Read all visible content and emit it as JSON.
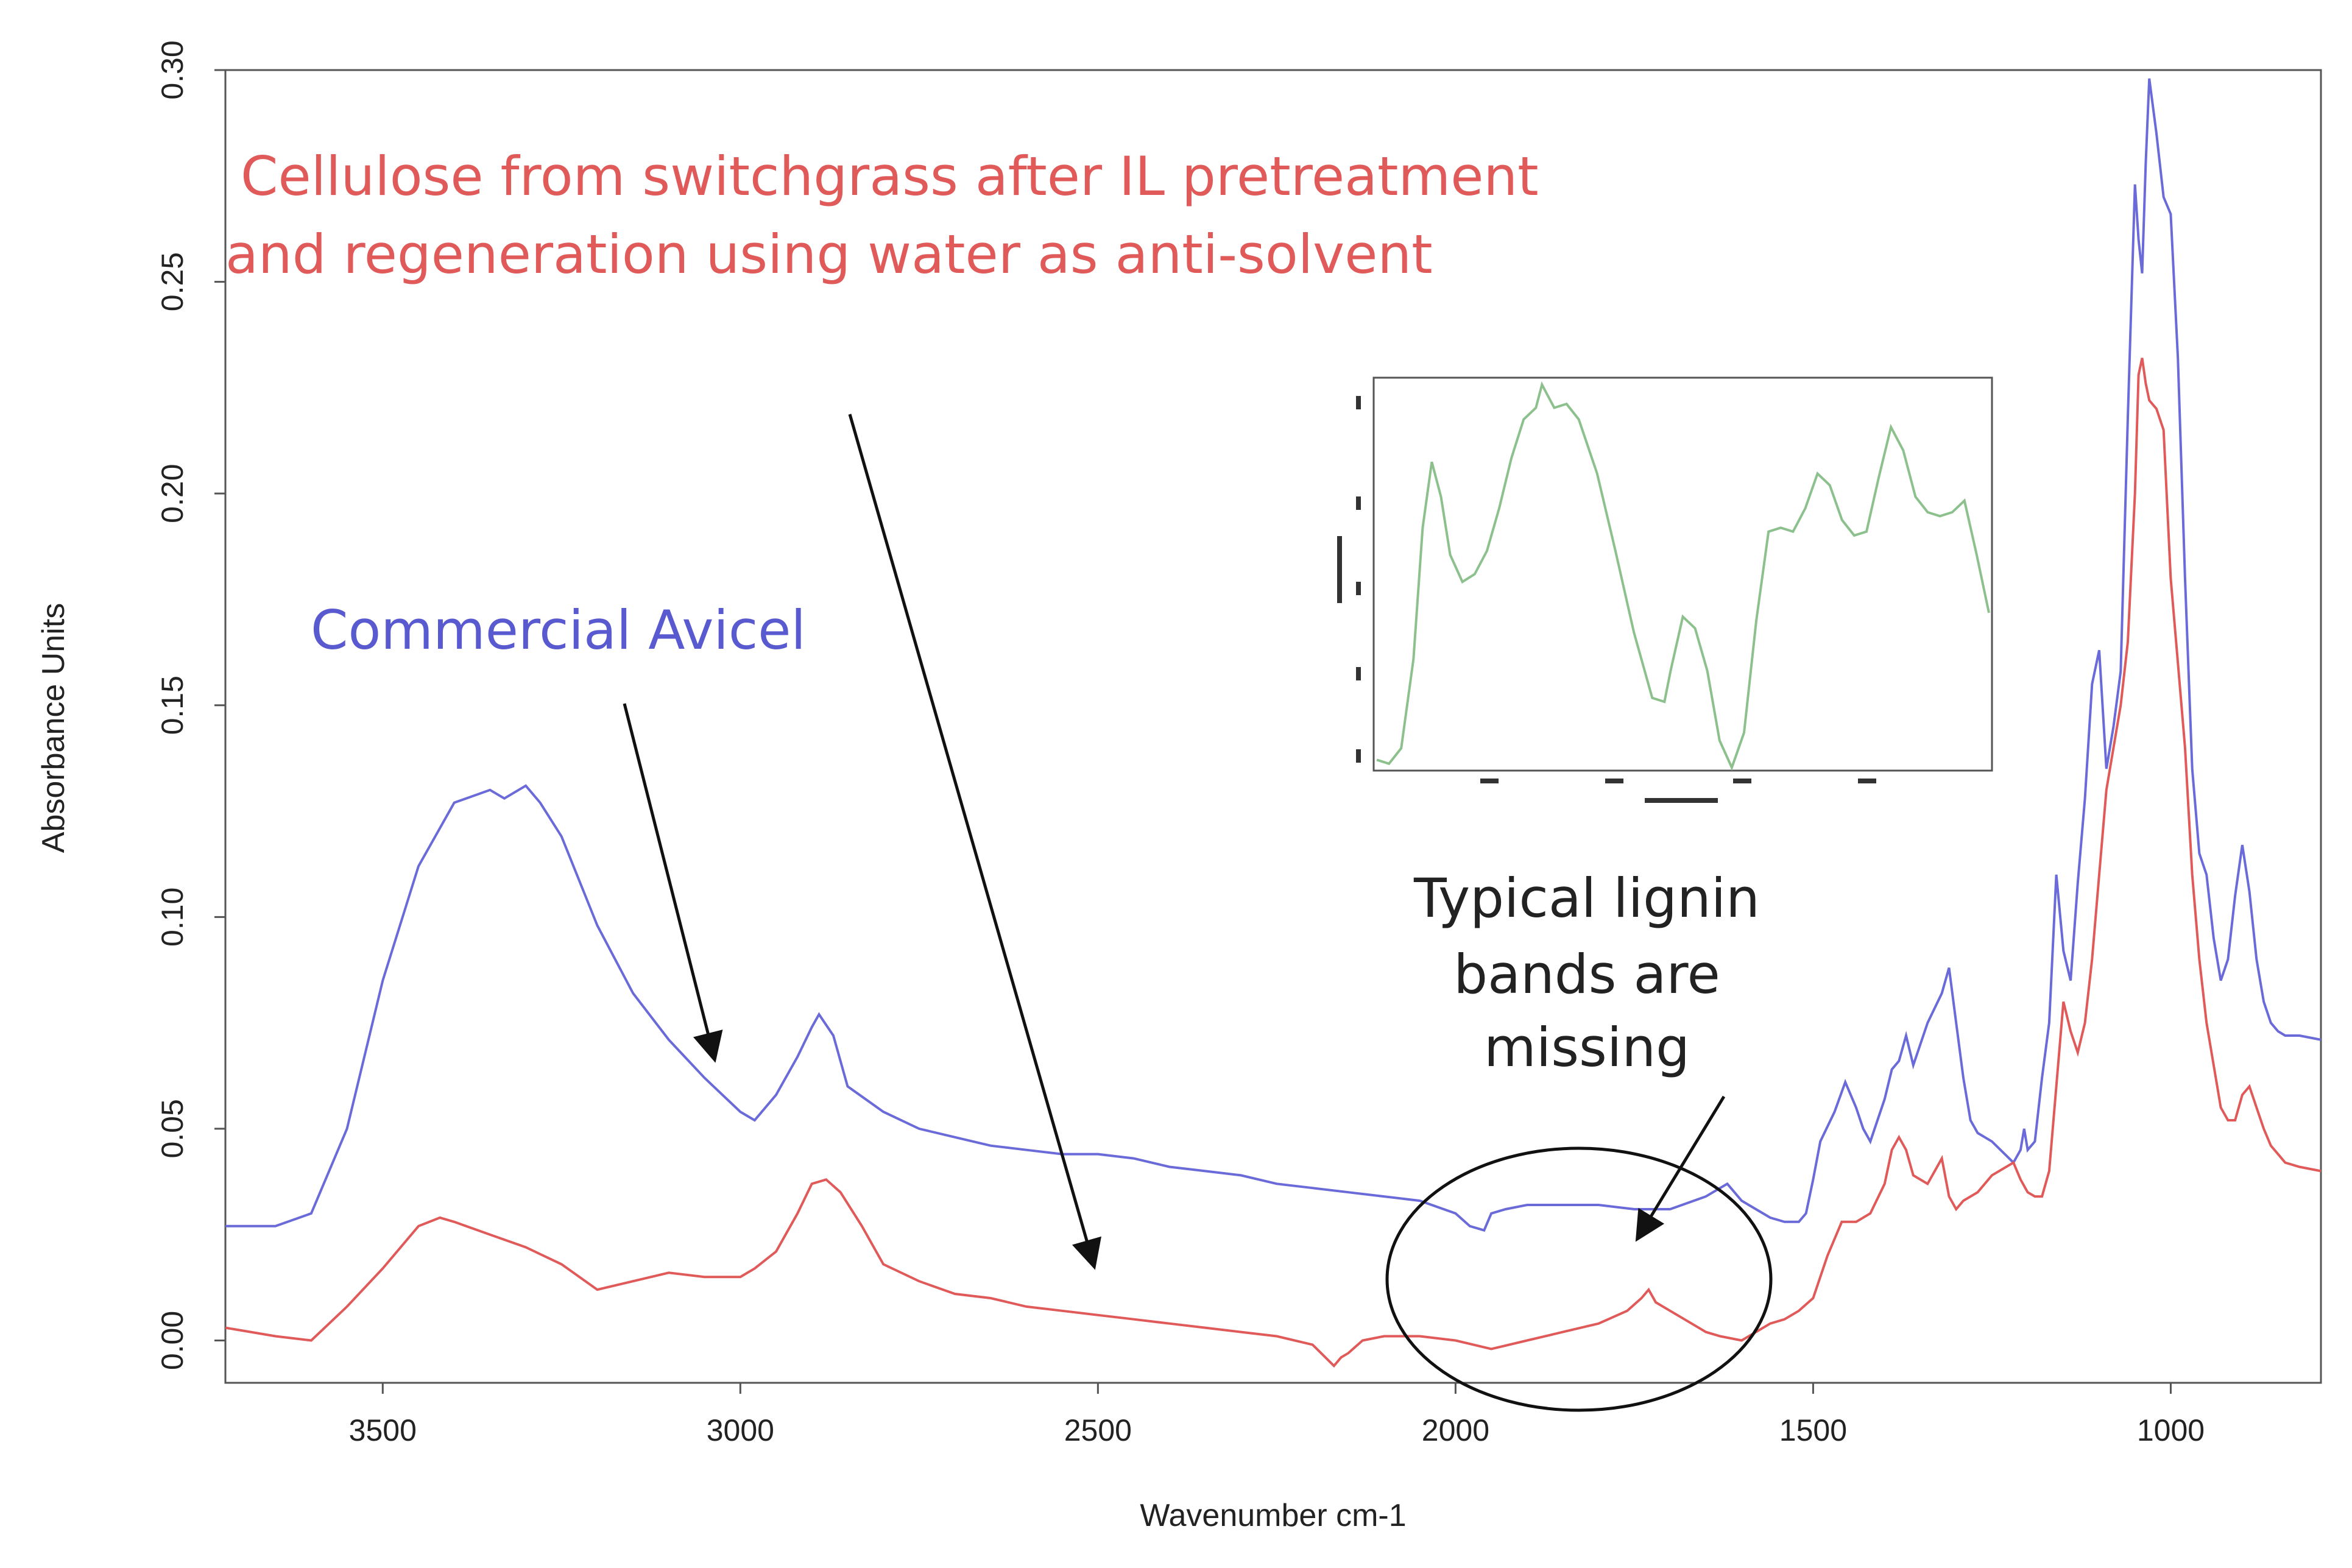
{
  "chart_data": {
    "type": "line",
    "ylabel": "Absorbance Units",
    "xlabel": "Wavenumber cm-1",
    "xlim": [
      3720,
      790
    ],
    "ylim": [
      -0.01,
      0.3
    ],
    "x_reversed": true,
    "xticks": [
      3500,
      3000,
      2500,
      2000,
      1500,
      1000
    ],
    "yticks": [
      0.0,
      0.05,
      0.1,
      0.15,
      0.2,
      0.25,
      0.3
    ],
    "xtick_labels": [
      "3500",
      "3000",
      "2500",
      "2000",
      "1500",
      "1000"
    ],
    "ytick_labels": [
      "0.00",
      "0.05",
      "0.10",
      "0.15",
      "0.20",
      "0.25",
      "0.30"
    ],
    "series": [
      {
        "key": "avicel",
        "color": "#6a6ad8",
        "x": [
          3720,
          3650,
          3600,
          3550,
          3500,
          3450,
          3400,
          3350,
          3330,
          3300,
          3280,
          3250,
          3200,
          3150,
          3100,
          3050,
          3000,
          2980,
          2950,
          2920,
          2900,
          2890,
          2870,
          2850,
          2800,
          2750,
          2700,
          2650,
          2600,
          2550,
          2500,
          2450,
          2400,
          2350,
          2300,
          2250,
          2200,
          2150,
          2100,
          2050,
          2000,
          1980,
          1960,
          1950,
          1930,
          1900,
          1850,
          1800,
          1750,
          1700,
          1650,
          1620,
          1600,
          1580,
          1560,
          1540,
          1520,
          1510,
          1500,
          1490,
          1470,
          1455,
          1440,
          1430,
          1420,
          1400,
          1390,
          1380,
          1370,
          1360,
          1340,
          1320,
          1310,
          1300,
          1290,
          1280,
          1270,
          1250,
          1220,
          1210,
          1205,
          1200,
          1190,
          1180,
          1170,
          1160,
          1150,
          1140,
          1130,
          1120,
          1110,
          1100,
          1090,
          1080,
          1070,
          1060,
          1050,
          1045,
          1040,
          1035,
          1030,
          1020,
          1010,
          1000,
          990,
          980,
          970,
          960,
          950,
          940,
          930,
          920,
          910,
          900,
          890,
          880,
          870,
          860,
          850,
          840,
          820,
          790
        ],
        "y": [
          0.027,
          0.027,
          0.03,
          0.05,
          0.085,
          0.112,
          0.127,
          0.13,
          0.128,
          0.131,
          0.127,
          0.119,
          0.098,
          0.082,
          0.071,
          0.062,
          0.054,
          0.052,
          0.058,
          0.067,
          0.074,
          0.077,
          0.072,
          0.06,
          0.054,
          0.05,
          0.048,
          0.046,
          0.045,
          0.044,
          0.044,
          0.043,
          0.041,
          0.04,
          0.039,
          0.037,
          0.036,
          0.035,
          0.034,
          0.033,
          0.03,
          0.027,
          0.026,
          0.03,
          0.031,
          0.032,
          0.032,
          0.032,
          0.031,
          0.031,
          0.034,
          0.037,
          0.033,
          0.031,
          0.029,
          0.028,
          0.028,
          0.03,
          0.038,
          0.047,
          0.054,
          0.061,
          0.055,
          0.05,
          0.047,
          0.057,
          0.064,
          0.066,
          0.072,
          0.065,
          0.075,
          0.082,
          0.088,
          0.075,
          0.062,
          0.052,
          0.049,
          0.047,
          0.042,
          0.045,
          0.05,
          0.045,
          0.047,
          0.062,
          0.075,
          0.11,
          0.092,
          0.085,
          0.108,
          0.128,
          0.155,
          0.163,
          0.135,
          0.145,
          0.158,
          0.218,
          0.273,
          0.26,
          0.252,
          0.278,
          0.298,
          0.285,
          0.27,
          0.266,
          0.232,
          0.18,
          0.135,
          0.115,
          0.11,
          0.095,
          0.085,
          0.09,
          0.105,
          0.117,
          0.106,
          0.09,
          0.08,
          0.075,
          0.073,
          0.072,
          0.072,
          0.071
        ]
      },
      {
        "key": "il_cellulose",
        "color": "#e05a5a",
        "x": [
          3720,
          3650,
          3600,
          3550,
          3500,
          3450,
          3420,
          3400,
          3350,
          3300,
          3250,
          3200,
          3150,
          3100,
          3050,
          3000,
          2980,
          2950,
          2920,
          2900,
          2880,
          2860,
          2830,
          2800,
          2750,
          2700,
          2650,
          2600,
          2550,
          2500,
          2450,
          2400,
          2350,
          2300,
          2250,
          2200,
          2170,
          2160,
          2150,
          2130,
          2100,
          2050,
          2000,
          1950,
          1900,
          1850,
          1800,
          1760,
          1740,
          1730,
          1720,
          1700,
          1680,
          1650,
          1630,
          1600,
          1580,
          1560,
          1540,
          1520,
          1500,
          1480,
          1460,
          1440,
          1420,
          1400,
          1390,
          1380,
          1370,
          1360,
          1340,
          1320,
          1310,
          1300,
          1290,
          1270,
          1250,
          1220,
          1210,
          1200,
          1190,
          1180,
          1170,
          1160,
          1150,
          1140,
          1130,
          1120,
          1110,
          1100,
          1090,
          1080,
          1070,
          1060,
          1050,
          1045,
          1040,
          1035,
          1030,
          1020,
          1010,
          1000,
          990,
          980,
          970,
          960,
          950,
          940,
          930,
          920,
          910,
          900,
          890,
          880,
          870,
          860,
          850,
          840,
          820,
          790
        ],
        "y": [
          0.003,
          0.001,
          0.0,
          0.008,
          0.017,
          0.027,
          0.029,
          0.028,
          0.025,
          0.022,
          0.018,
          0.012,
          0.014,
          0.016,
          0.015,
          0.015,
          0.017,
          0.021,
          0.03,
          0.037,
          0.038,
          0.035,
          0.027,
          0.018,
          0.014,
          0.011,
          0.01,
          0.008,
          0.007,
          0.006,
          0.005,
          0.004,
          0.003,
          0.002,
          0.001,
          -0.001,
          -0.006,
          -0.004,
          -0.003,
          0.0,
          0.001,
          0.001,
          0.0,
          -0.002,
          0.0,
          0.002,
          0.004,
          0.007,
          0.01,
          0.012,
          0.009,
          0.007,
          0.005,
          0.002,
          0.001,
          0.0,
          0.002,
          0.004,
          0.005,
          0.007,
          0.01,
          0.02,
          0.028,
          0.028,
          0.03,
          0.037,
          0.045,
          0.048,
          0.045,
          0.039,
          0.037,
          0.043,
          0.034,
          0.031,
          0.033,
          0.035,
          0.039,
          0.042,
          0.038,
          0.035,
          0.034,
          0.034,
          0.04,
          0.06,
          0.08,
          0.073,
          0.068,
          0.075,
          0.09,
          0.11,
          0.13,
          0.14,
          0.15,
          0.165,
          0.2,
          0.228,
          0.232,
          0.226,
          0.222,
          0.22,
          0.215,
          0.18,
          0.16,
          0.14,
          0.11,
          0.09,
          0.075,
          0.065,
          0.055,
          0.052,
          0.052,
          0.058,
          0.06,
          0.055,
          0.05,
          0.046,
          0.044,
          0.042,
          0.041,
          0.04
        ]
      }
    ],
    "inset": {
      "color": "#8cc08c",
      "points": [
        [
          0.0,
          0.02
        ],
        [
          0.02,
          0.01
        ],
        [
          0.04,
          0.05
        ],
        [
          0.06,
          0.28
        ],
        [
          0.075,
          0.62
        ],
        [
          0.09,
          0.79
        ],
        [
          0.105,
          0.7
        ],
        [
          0.12,
          0.55
        ],
        [
          0.14,
          0.48
        ],
        [
          0.16,
          0.5
        ],
        [
          0.18,
          0.56
        ],
        [
          0.2,
          0.67
        ],
        [
          0.22,
          0.8
        ],
        [
          0.24,
          0.9
        ],
        [
          0.26,
          0.93
        ],
        [
          0.27,
          0.99
        ],
        [
          0.29,
          0.93
        ],
        [
          0.31,
          0.94
        ],
        [
          0.33,
          0.9
        ],
        [
          0.36,
          0.76
        ],
        [
          0.39,
          0.56
        ],
        [
          0.42,
          0.35
        ],
        [
          0.45,
          0.18
        ],
        [
          0.47,
          0.17
        ],
        [
          0.48,
          0.25
        ],
        [
          0.5,
          0.39
        ],
        [
          0.52,
          0.36
        ],
        [
          0.54,
          0.25
        ],
        [
          0.56,
          0.07
        ],
        [
          0.58,
          0.0
        ],
        [
          0.6,
          0.09
        ],
        [
          0.62,
          0.38
        ],
        [
          0.64,
          0.61
        ],
        [
          0.66,
          0.62
        ],
        [
          0.68,
          0.61
        ],
        [
          0.7,
          0.67
        ],
        [
          0.72,
          0.76
        ],
        [
          0.74,
          0.73
        ],
        [
          0.76,
          0.64
        ],
        [
          0.78,
          0.6
        ],
        [
          0.8,
          0.61
        ],
        [
          0.82,
          0.75
        ],
        [
          0.84,
          0.88
        ],
        [
          0.86,
          0.82
        ],
        [
          0.88,
          0.7
        ],
        [
          0.9,
          0.66
        ],
        [
          0.92,
          0.65
        ],
        [
          0.94,
          0.66
        ],
        [
          0.96,
          0.69
        ],
        [
          0.98,
          0.55
        ],
        [
          1.0,
          0.4
        ]
      ]
    },
    "annotations": {
      "title_line1": "Cellulose from switchgrass after IL pretreatment",
      "title_line2": "and regeneration using water as anti-solvent",
      "avicel_label": "Commercial Avicel",
      "lignin_line1": "Typical lignin",
      "lignin_line2": "bands are",
      "lignin_line3": "missing",
      "title_color": "#e05a5a",
      "avicel_color": "#5a5ad0",
      "lignin_color": "#222222"
    }
  }
}
